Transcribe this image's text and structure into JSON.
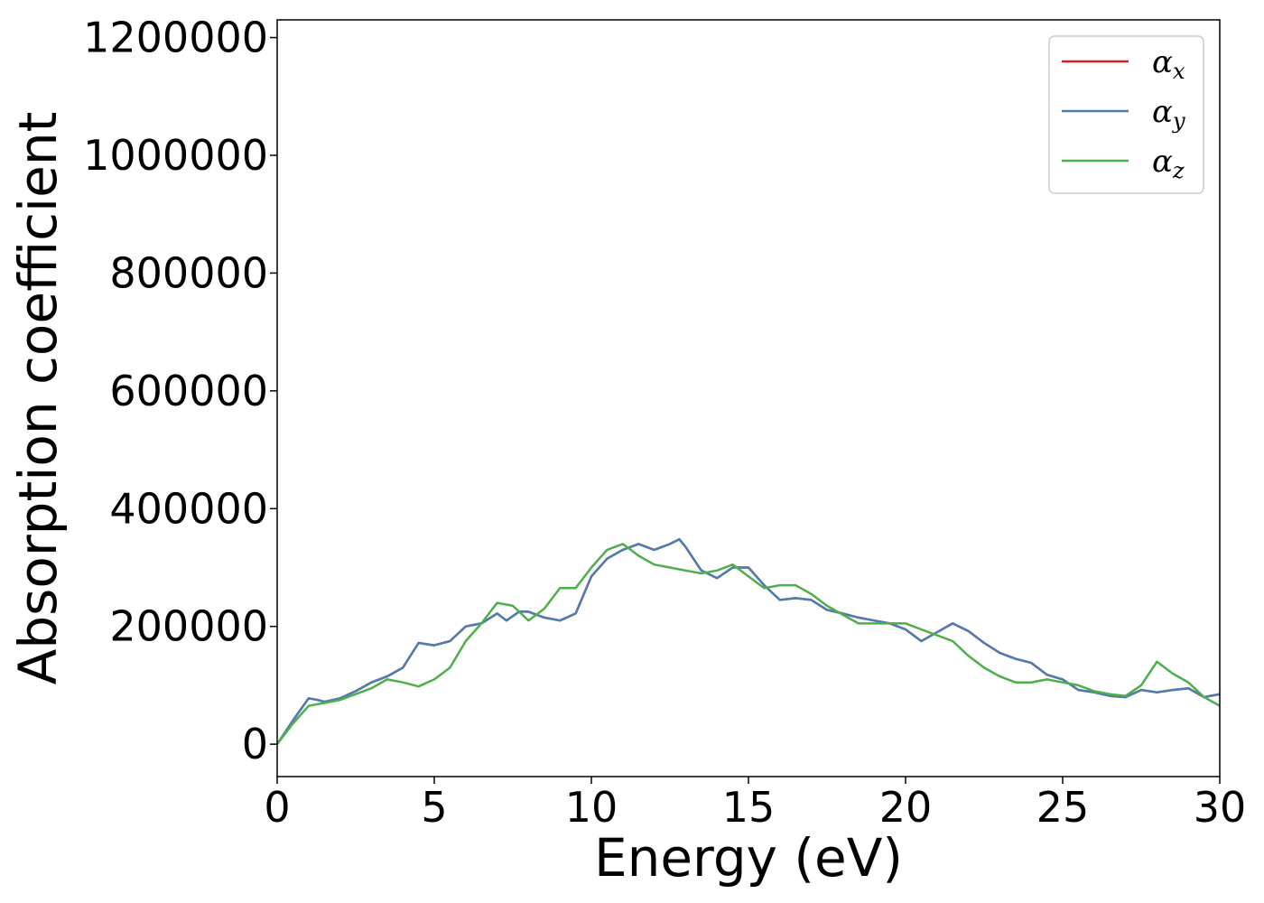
{
  "chart_data": {
    "type": "line",
    "xlabel": "Energy (eV)",
    "ylabel": "Absorption coefficient",
    "xlim": [
      0,
      30
    ],
    "ylim": [
      -55000,
      1230000
    ],
    "xticks": [
      0,
      5,
      10,
      15,
      20,
      25,
      30
    ],
    "xtick_labels": [
      "0",
      "5",
      "10",
      "15",
      "20",
      "25",
      "30"
    ],
    "yticks": [
      0,
      200000,
      400000,
      600000,
      800000,
      1000000,
      1200000
    ],
    "ytick_labels": [
      "0",
      "200000",
      "400000",
      "600000",
      "800000",
      "1000000",
      "1200000"
    ],
    "grid": false,
    "legend_position": "top-right",
    "series": [
      {
        "name": "α_x",
        "legend_base": "α",
        "legend_sub": "x",
        "color": "#e41a1c",
        "x": [
          0,
          0.5,
          1.0,
          1.3,
          1.5,
          2.0,
          2.5,
          3.0,
          3.5,
          4.0,
          4.5,
          5.0,
          5.5,
          6.0,
          6.5,
          7.0,
          7.3,
          7.7,
          8.0,
          8.5,
          9.0,
          9.5,
          10.0,
          10.5,
          11.0,
          11.5,
          12.0,
          12.5,
          12.8,
          13.0,
          13.5,
          14.0,
          14.5,
          15.0,
          15.5,
          16.0,
          16.5,
          17.0,
          17.5,
          18.0,
          18.5,
          19.0,
          19.5,
          20.0,
          20.5,
          21.0,
          21.5,
          22.0,
          22.5,
          23.0,
          23.5,
          24.0,
          24.5,
          25.0,
          25.5,
          26.0,
          26.5,
          27.0,
          27.5,
          28.0,
          28.5,
          29.0,
          29.5,
          30.0
        ],
        "y": [
          0,
          40000,
          78000,
          75000,
          72000,
          78000,
          90000,
          105000,
          115000,
          130000,
          172000,
          168000,
          175000,
          200000,
          205000,
          222000,
          210000,
          225000,
          225000,
          215000,
          210000,
          222000,
          285000,
          315000,
          330000,
          340000,
          330000,
          340000,
          348000,
          335000,
          295000,
          282000,
          300000,
          300000,
          270000,
          245000,
          248000,
          245000,
          228000,
          222000,
          215000,
          210000,
          205000,
          195000,
          175000,
          190000,
          205000,
          192000,
          172000,
          155000,
          145000,
          138000,
          118000,
          110000,
          92000,
          88000,
          82000,
          80000,
          92000,
          88000,
          92000,
          95000,
          80000,
          85000
        ]
      },
      {
        "name": "α_y",
        "legend_base": "α",
        "legend_sub": "y",
        "color": "#4a7fb3",
        "x": [
          0,
          0.5,
          1.0,
          1.3,
          1.5,
          2.0,
          2.5,
          3.0,
          3.5,
          4.0,
          4.5,
          5.0,
          5.5,
          6.0,
          6.5,
          7.0,
          7.3,
          7.7,
          8.0,
          8.5,
          9.0,
          9.5,
          10.0,
          10.5,
          11.0,
          11.5,
          12.0,
          12.5,
          12.8,
          13.0,
          13.5,
          14.0,
          14.5,
          15.0,
          15.5,
          16.0,
          16.5,
          17.0,
          17.5,
          18.0,
          18.5,
          19.0,
          19.5,
          20.0,
          20.5,
          21.0,
          21.5,
          22.0,
          22.5,
          23.0,
          23.5,
          24.0,
          24.5,
          25.0,
          25.5,
          26.0,
          26.5,
          27.0,
          27.5,
          28.0,
          28.5,
          29.0,
          29.5,
          30.0
        ],
        "y": [
          0,
          40000,
          78000,
          75000,
          72000,
          78000,
          90000,
          105000,
          115000,
          130000,
          172000,
          168000,
          175000,
          200000,
          205000,
          222000,
          210000,
          225000,
          225000,
          215000,
          210000,
          222000,
          285000,
          315000,
          330000,
          340000,
          330000,
          340000,
          348000,
          335000,
          295000,
          282000,
          300000,
          300000,
          270000,
          245000,
          248000,
          245000,
          228000,
          222000,
          215000,
          210000,
          205000,
          195000,
          175000,
          190000,
          205000,
          192000,
          172000,
          155000,
          145000,
          138000,
          118000,
          110000,
          92000,
          88000,
          82000,
          80000,
          92000,
          88000,
          92000,
          95000,
          80000,
          85000
        ]
      },
      {
        "name": "α_z",
        "legend_base": "α",
        "legend_sub": "z",
        "color": "#4daf4a",
        "x": [
          0,
          0.5,
          1.0,
          1.5,
          2.0,
          2.5,
          3.0,
          3.5,
          4.0,
          4.5,
          5.0,
          5.5,
          6.0,
          6.5,
          7.0,
          7.5,
          8.0,
          8.5,
          9.0,
          9.5,
          10.0,
          10.5,
          11.0,
          11.5,
          12.0,
          12.5,
          13.0,
          13.5,
          14.0,
          14.5,
          15.0,
          15.5,
          16.0,
          16.5,
          17.0,
          17.5,
          18.0,
          18.5,
          19.0,
          19.5,
          20.0,
          20.5,
          21.0,
          21.5,
          22.0,
          22.5,
          23.0,
          23.5,
          24.0,
          24.5,
          25.0,
          25.5,
          26.0,
          26.5,
          27.0,
          27.5,
          28.0,
          28.5,
          29.0,
          29.5,
          30.0
        ],
        "y": [
          0,
          35000,
          65000,
          70000,
          75000,
          85000,
          95000,
          110000,
          105000,
          98000,
          110000,
          130000,
          175000,
          205000,
          240000,
          235000,
          210000,
          230000,
          265000,
          265000,
          300000,
          330000,
          340000,
          320000,
          305000,
          300000,
          295000,
          290000,
          295000,
          305000,
          285000,
          265000,
          270000,
          270000,
          255000,
          235000,
          220000,
          205000,
          205000,
          205000,
          205000,
          195000,
          185000,
          175000,
          150000,
          130000,
          115000,
          105000,
          105000,
          110000,
          105000,
          100000,
          90000,
          85000,
          82000,
          100000,
          140000,
          120000,
          105000,
          80000,
          65000
        ]
      }
    ]
  }
}
